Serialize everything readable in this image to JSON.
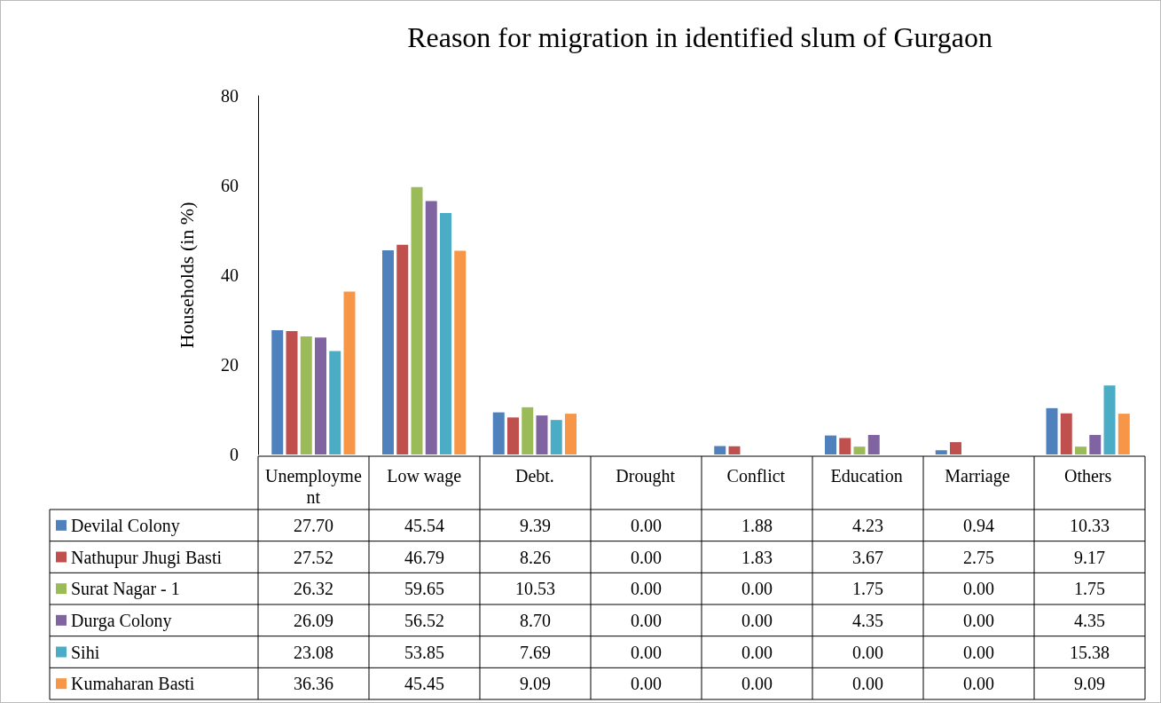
{
  "chart_data": {
    "type": "bar",
    "title": "Reason for migration in identified slum of Gurgaon",
    "ylabel": "Households (in %)",
    "categories": [
      "Unemployment",
      "Low wage",
      "Debt.",
      "Drought",
      "Conflict",
      "Education",
      "Marriage",
      "Others"
    ],
    "series": [
      {
        "name": "Devilal Colony",
        "color": "#4f81bd",
        "values": [
          27.7,
          45.54,
          9.39,
          0.0,
          1.88,
          4.23,
          0.94,
          10.33
        ],
        "value_labels": [
          "27.70",
          "45.54",
          "9.39",
          "0.00",
          "1.88",
          "4.23",
          "0.94",
          "10.33"
        ]
      },
      {
        "name": "Nathupur Jhugi Basti",
        "color": "#c0504d",
        "values": [
          27.52,
          46.79,
          8.26,
          0.0,
          1.83,
          3.67,
          2.75,
          9.17
        ],
        "value_labels": [
          "27.52",
          "46.79",
          "8.26",
          "0.00",
          "1.83",
          "3.67",
          "2.75",
          "9.17"
        ]
      },
      {
        "name": "Surat Nagar - 1",
        "color": "#9bbb59",
        "values": [
          26.32,
          59.65,
          10.53,
          0.0,
          0.0,
          1.75,
          0.0,
          1.75
        ],
        "value_labels": [
          "26.32",
          "59.65",
          "10.53",
          "0.00",
          "0.00",
          "1.75",
          "0.00",
          "1.75"
        ]
      },
      {
        "name": "Durga Colony",
        "color": "#8064a2",
        "values": [
          26.09,
          56.52,
          8.7,
          0.0,
          0.0,
          4.35,
          0.0,
          4.35
        ],
        "value_labels": [
          "26.09",
          "56.52",
          "8.70",
          "0.00",
          "0.00",
          "4.35",
          "0.00",
          "4.35"
        ]
      },
      {
        "name": "Sihi",
        "color": "#4bacc6",
        "values": [
          23.08,
          53.85,
          7.69,
          0.0,
          0.0,
          0.0,
          0.0,
          15.38
        ],
        "value_labels": [
          "23.08",
          "53.85",
          "7.69",
          "0.00",
          "0.00",
          "0.00",
          "0.00",
          "15.38"
        ]
      },
      {
        "name": "Kumaharan Basti",
        "color": "#f79646",
        "values": [
          36.36,
          45.45,
          9.09,
          0.0,
          0.0,
          0.0,
          0.0,
          9.09
        ],
        "value_labels": [
          "36.36",
          "45.45",
          "9.09",
          "0.00",
          "0.00",
          "0.00",
          "0.00",
          "9.09"
        ]
      }
    ],
    "ylim": [
      0,
      80
    ],
    "yticks": [
      0,
      20,
      40,
      60,
      80
    ],
    "grid": false,
    "legend": "bottom"
  }
}
